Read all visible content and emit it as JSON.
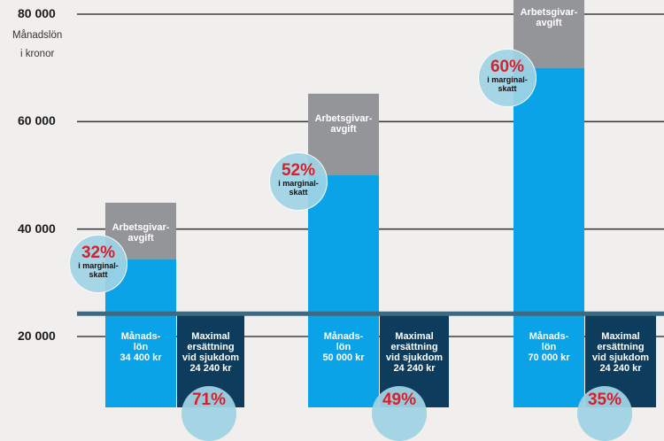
{
  "chart_data": {
    "type": "bar",
    "y_unit_label": "Månadslön\ni kronor",
    "yticks": [
      "80 000",
      "60 000",
      "40 000",
      "20 000"
    ],
    "ytick_values": [
      80000,
      60000,
      40000,
      20000
    ],
    "ylim": [
      0,
      80000
    ],
    "grid": true,
    "reference_line": 24240,
    "colors": {
      "salary": "#0aa3e8",
      "employer_fee": "#949598",
      "sickness": "#0d3c5c",
      "circle": "#a0d2e4",
      "percent": "#d81f2a",
      "grid": "#3e3e3e"
    },
    "groups": [
      {
        "salary_value": 34400,
        "total_value": 44900,
        "salary_label": "Månads-\nlön\n34 400 kr",
        "fee_label": "Arbetsgivar-\navgift",
        "marginal_pct": "32%",
        "marginal_text": "i marginal-\nskatt",
        "sick_value": 24240,
        "sick_label": "Maximal\nersättning\nvid sjukdom\n24 240 kr",
        "sick_pct": "71%"
      },
      {
        "salary_value": 50000,
        "total_value": 65200,
        "salary_label": "Månads-\nlön\n50 000 kr",
        "fee_label": "Arbetsgivar-\navgift",
        "marginal_pct": "52%",
        "marginal_text": "i marginal-\nskatt",
        "sick_value": 24240,
        "sick_label": "Maximal\nersättning\nvid sjukdom\n24 240 kr",
        "sick_pct": "49%"
      },
      {
        "salary_value": 70000,
        "total_value": 91200,
        "salary_label": "Månads-\nlön\n70 000 kr",
        "fee_label": "Arbetsgivar-\navgift",
        "marginal_pct": "60%",
        "marginal_text": "i marginal-\nskatt",
        "sick_value": 24240,
        "sick_label": "Maximal\nersättning\nvid sjukdom\n24 240 kr",
        "sick_pct": "35%"
      }
    ]
  }
}
